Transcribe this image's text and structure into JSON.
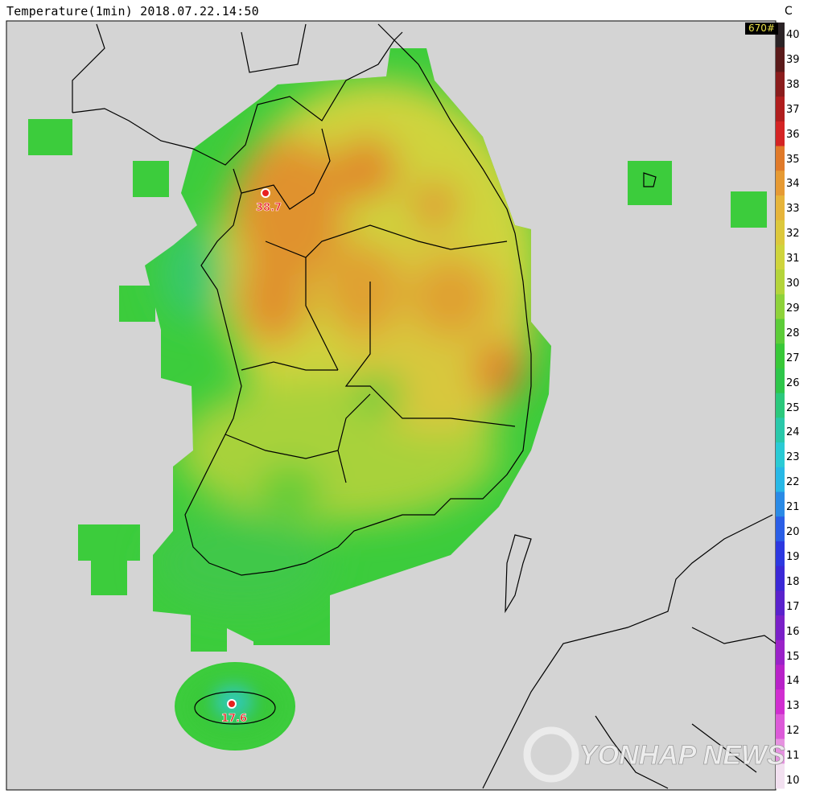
{
  "header": {
    "title": "Temperature(1min) 2018.07.22.14:50",
    "unit": "C",
    "station_count": "670#"
  },
  "colorbar": {
    "ticks": [
      40,
      39,
      38,
      37,
      36,
      35,
      34,
      33,
      32,
      31,
      30,
      29,
      28,
      27,
      26,
      25,
      24,
      23,
      22,
      21,
      20,
      19,
      18,
      17,
      16,
      15,
      14,
      13,
      12,
      11,
      10
    ],
    "colors": [
      "#2b2326",
      "#5a1a1a",
      "#8a1c1c",
      "#b01e1e",
      "#d42424",
      "#e07a2a",
      "#e69a33",
      "#e6b43a",
      "#dcc83c",
      "#cfd43c",
      "#b4d43a",
      "#8ed23a",
      "#5ccc38",
      "#38c838",
      "#2ec64a",
      "#2bc87c",
      "#2ac8aa",
      "#2acad4",
      "#28b8e6",
      "#2a8ae6",
      "#2a5ee6",
      "#2c38e0",
      "#3a28d6",
      "#5a22cc",
      "#7a20c8",
      "#9a22c8",
      "#b822c8",
      "#d02ed0",
      "#dc5ad8",
      "#e692e0",
      "#f2e0f0"
    ]
  },
  "markers": [
    {
      "label": "38.7",
      "kind": "max"
    },
    {
      "label": "17.6",
      "kind": "min"
    }
  ],
  "watermark": "YONHAP NEWS"
}
